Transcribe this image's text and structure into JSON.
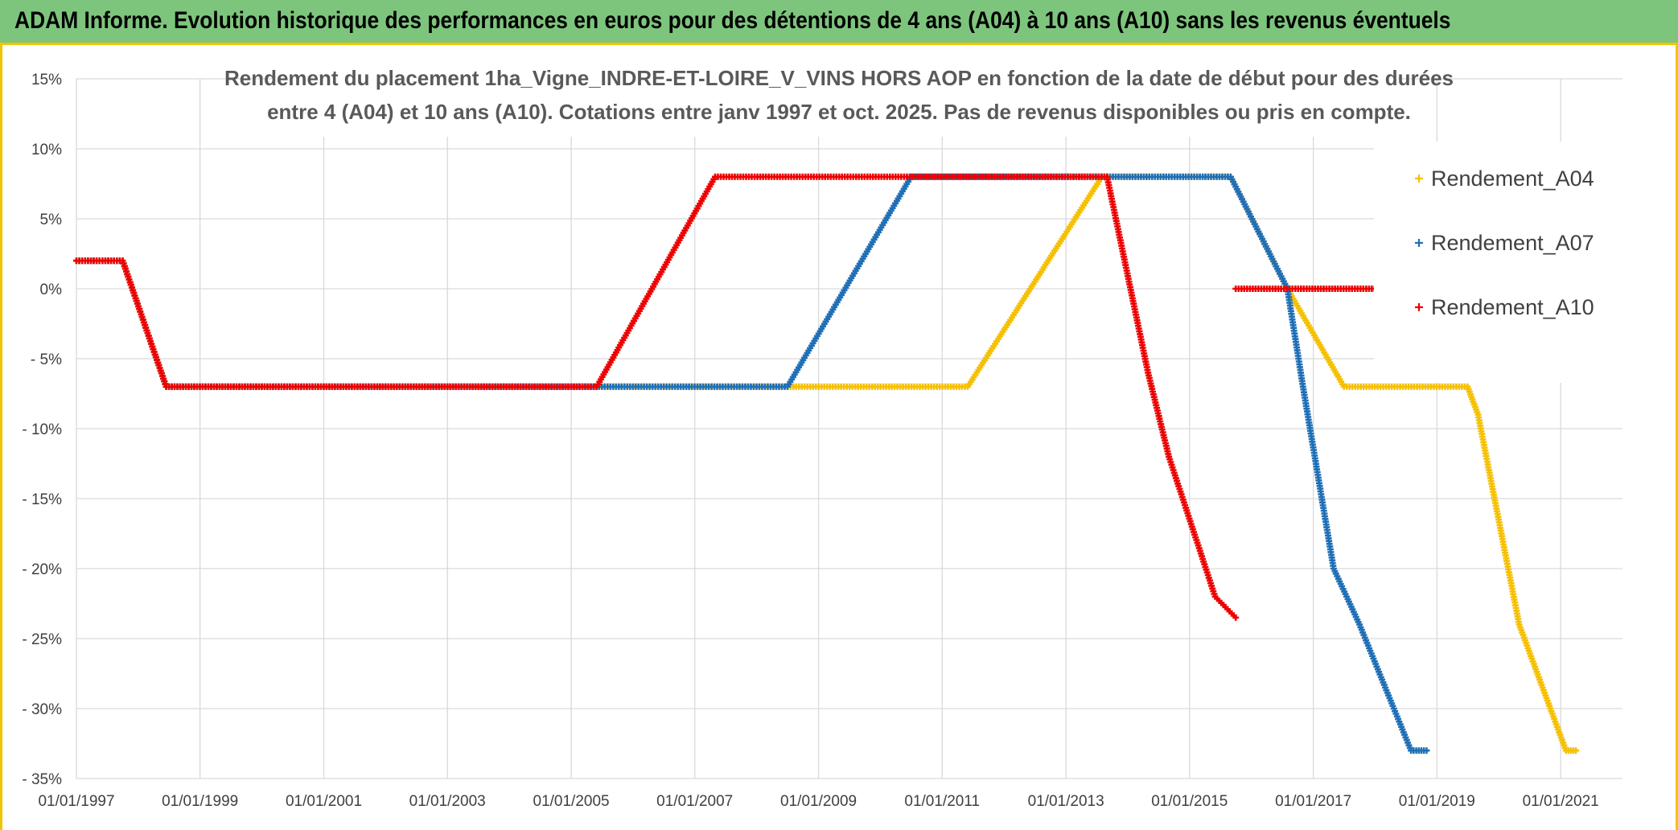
{
  "banner": {
    "title": "ADAM Informe. Evolution historique des performances en euros pour des détentions de 4 ans (A04) à 10 ans (A10) sans les revenus éventuels"
  },
  "colors": {
    "banner_bg": "#7dc57d",
    "banner_border": "#f1c400",
    "grid": "#d9d9d9",
    "A04": "#f5c000",
    "A07": "#1f6fb6",
    "A10": "#ee0000"
  },
  "chart_data": {
    "type": "scatter",
    "title_lines": [
      "Rendement du placement 1ha_Vigne_INDRE-ET-LOIRE_V_VINS HORS AOP en fonction de la date de début pour des durées",
      "entre 4 (A04) et 10 ans (A10). Cotations entre janv 1997 et oct. 2025. Pas de revenus disponibles ou pris en compte."
    ],
    "xlabel": "",
    "ylabel": "",
    "x_type": "date",
    "xlim": [
      "1997-01-01",
      "2022-01-01"
    ],
    "x_ticks": [
      "01/01/1997",
      "01/01/1999",
      "01/01/2001",
      "01/01/2003",
      "01/01/2005",
      "01/01/2007",
      "01/01/2009",
      "01/01/2011",
      "01/01/2013",
      "01/01/2015",
      "01/01/2017",
      "01/01/2019",
      "01/01/2021"
    ],
    "ylim": [
      -35,
      15
    ],
    "y_ticks": [
      {
        "value": 15,
        "label": "15%"
      },
      {
        "value": 10,
        "label": "10%"
      },
      {
        "value": 5,
        "label": "5%"
      },
      {
        "value": 0,
        "label": "0%"
      },
      {
        "value": -5,
        "label": "- 5%"
      },
      {
        "value": -10,
        "label": "- 10%"
      },
      {
        "value": -15,
        "label": "- 15%"
      },
      {
        "value": -20,
        "label": "- 20%"
      },
      {
        "value": -25,
        "label": "- 25%"
      },
      {
        "value": -30,
        "label": "- 30%"
      },
      {
        "value": -35,
        "label": "- 35%"
      }
    ],
    "grid": true,
    "legend_position": "right",
    "series": [
      {
        "name": "Rendement_A04",
        "color": "#f5c000",
        "points": [
          [
            "1997-01-01",
            2
          ],
          [
            "1997-10-01",
            2
          ],
          [
            "1998-06-15",
            -7
          ],
          [
            "2011-06-01",
            -7
          ],
          [
            "2013-08-01",
            8
          ],
          [
            "2015-09-01",
            8
          ],
          [
            "2016-08-01",
            0
          ],
          [
            "2017-07-01",
            -7
          ],
          [
            "2019-07-01",
            -7
          ],
          [
            "2019-09-01",
            -9
          ],
          [
            "2020-05-01",
            -24
          ],
          [
            "2021-02-01",
            -33
          ],
          [
            "2021-04-01",
            -33
          ]
        ]
      },
      {
        "name": "Rendement_A07",
        "color": "#1f6fb6",
        "points": [
          [
            "1997-01-01",
            2
          ],
          [
            "1997-10-01",
            2
          ],
          [
            "1998-06-15",
            -7
          ],
          [
            "2008-07-01",
            -7
          ],
          [
            "2010-07-01",
            8
          ],
          [
            "2015-09-01",
            8
          ],
          [
            "2016-08-01",
            0
          ],
          [
            "2016-11-01",
            -7
          ],
          [
            "2017-05-01",
            -20
          ],
          [
            "2017-10-01",
            -24
          ],
          [
            "2018-08-01",
            -33
          ],
          [
            "2018-11-01",
            -33
          ]
        ]
      },
      {
        "name": "Rendement_A10",
        "color": "#ee0000",
        "points": [
          [
            "1997-01-01",
            2
          ],
          [
            "1997-10-01",
            2
          ],
          [
            "1998-06-15",
            -7
          ],
          [
            "2005-06-01",
            -7
          ],
          [
            "2007-05-01",
            8
          ],
          [
            "2013-09-01",
            8
          ],
          [
            "2014-05-01",
            -6
          ],
          [
            "2014-09-01",
            -12
          ],
          [
            "2015-06-01",
            -22
          ],
          [
            "2015-10-01",
            -23.5
          ]
        ]
      },
      {
        "name": "Rendement_A10",
        "color": "#ee0000",
        "legend": false,
        "points": [
          [
            "2015-10-01",
            0
          ],
          [
            "2018-02-01",
            0
          ]
        ]
      }
    ]
  }
}
